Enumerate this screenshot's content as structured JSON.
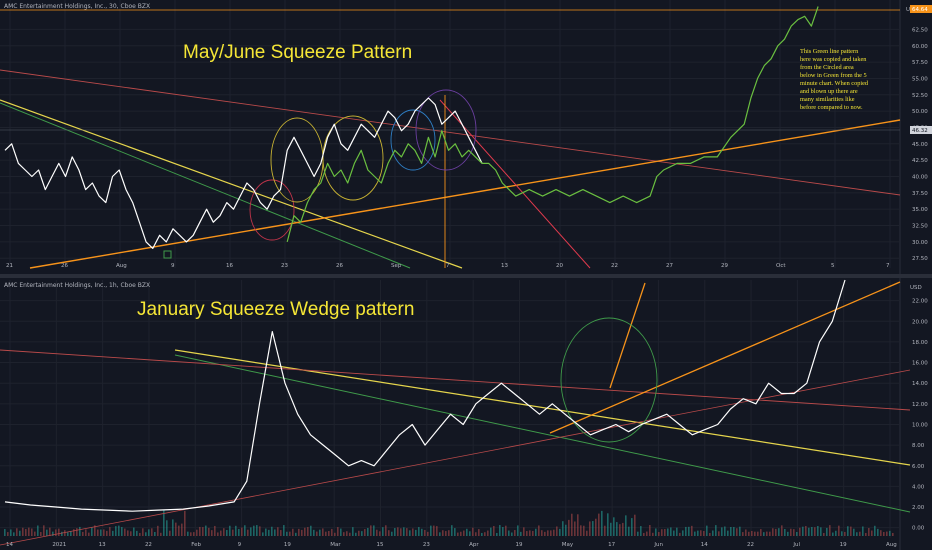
{
  "top_panel": {
    "title": "AMC Entertainment Holdings, Inc., 30, Cboe BZX",
    "heading": "May/June Squeeze Pattern",
    "note_lines": [
      "This Green line pattern",
      "here was copied and taken",
      "from the Circled area",
      "below in Green from the 5",
      "minute chart. When copied",
      "and blown up there are",
      "many similarities like",
      "before compared to now."
    ],
    "currency": "USD",
    "price_tags": [
      {
        "value": "64.64",
        "color": "#f7931a"
      },
      {
        "value": "46.32",
        "color": "#d1d4dc"
      }
    ]
  },
  "bottom_panel": {
    "title": "AMC Entertainment Holdings, Inc., 1h, Cboe BZX",
    "heading": "January Squeeze Wedge pattern",
    "currency": "USD"
  },
  "chart_data": [
    {
      "type": "line",
      "title": "AMC Entertainment Holdings, Inc., 30, Cboe BZX",
      "y_ticks": [
        27.5,
        30,
        32.5,
        35,
        37.5,
        40,
        42.5,
        45,
        47.5,
        50,
        52.5,
        55,
        57.5,
        60,
        62.5
      ],
      "y_tick_labels": [
        "27.50",
        "30.00",
        "32.50",
        "35.00",
        "37.50",
        "40.00",
        "42.50",
        "45.00",
        "47.50",
        "50.00",
        "52.50",
        "55.00",
        "57.50",
        "60.00",
        "62.50"
      ],
      "x_tick_labels": [
        "21",
        "26",
        "Aug",
        "9",
        "16",
        "23",
        "26",
        "Sep",
        "7",
        "13",
        "20",
        "22",
        "27",
        "29",
        "Oct",
        "5",
        "7"
      ],
      "ylim": [
        26,
        67
      ],
      "grid": true,
      "series": [
        {
          "color": "#ffffff",
          "points": [
            [
              0,
              44
            ],
            [
              1,
              45
            ],
            [
              2,
              42
            ],
            [
              3,
              41
            ],
            [
              4,
              40
            ],
            [
              5,
              41
            ],
            [
              6,
              38
            ],
            [
              7,
              40
            ],
            [
              8,
              42
            ],
            [
              9,
              40
            ],
            [
              10,
              43
            ],
            [
              11,
              41
            ],
            [
              12,
              38
            ],
            [
              13,
              39
            ],
            [
              14,
              37
            ],
            [
              15,
              36
            ],
            [
              16,
              40
            ],
            [
              17,
              41
            ],
            [
              18,
              38
            ],
            [
              19,
              36
            ],
            [
              20,
              33
            ],
            [
              21,
              30
            ],
            [
              22,
              29
            ],
            [
              23,
              31
            ],
            [
              24,
              30
            ],
            [
              25,
              32
            ],
            [
              26,
              31
            ],
            [
              27,
              30
            ],
            [
              28,
              31
            ],
            [
              29,
              33
            ],
            [
              30,
              35
            ],
            [
              31,
              33
            ],
            [
              32,
              34
            ],
            [
              33,
              36
            ],
            [
              34,
              35
            ],
            [
              35,
              37
            ],
            [
              36,
              39
            ],
            [
              37,
              38
            ],
            [
              38,
              36
            ],
            [
              39,
              35
            ],
            [
              40,
              37
            ],
            [
              41,
              38
            ],
            [
              42,
              44
            ],
            [
              43,
              46
            ],
            [
              44,
              44
            ],
            [
              45,
              42
            ],
            [
              46,
              40
            ],
            [
              47,
              42
            ],
            [
              48,
              46
            ],
            [
              49,
              48
            ],
            [
              50,
              45
            ],
            [
              51,
              44
            ],
            [
              52,
              46
            ],
            [
              53,
              48
            ],
            [
              54,
              47
            ],
            [
              55,
              46
            ],
            [
              56,
              48
            ],
            [
              57,
              50
            ],
            [
              58,
              49
            ],
            [
              59,
              47
            ],
            [
              60,
              48
            ],
            [
              61,
              50
            ],
            [
              62,
              51
            ],
            [
              63,
              52
            ],
            [
              64,
              51
            ],
            [
              65,
              48
            ],
            [
              66,
              49
            ],
            [
              67,
              50
            ],
            [
              68,
              48
            ],
            [
              69,
              46
            ],
            [
              70,
              44
            ],
            [
              71,
              42
            ]
          ]
        },
        {
          "color": "#6abf40",
          "points": [
            [
              42,
              30
            ],
            [
              43,
              34
            ],
            [
              44,
              33
            ],
            [
              45,
              36
            ],
            [
              46,
              38
            ],
            [
              47,
              39
            ],
            [
              48,
              42
            ],
            [
              49,
              40
            ],
            [
              50,
              41
            ],
            [
              51,
              39
            ],
            [
              52,
              42
            ],
            [
              53,
              44
            ],
            [
              54,
              41
            ],
            [
              55,
              40
            ],
            [
              56,
              39
            ],
            [
              57,
              42
            ],
            [
              58,
              44
            ],
            [
              59,
              43
            ],
            [
              60,
              45
            ],
            [
              61,
              44
            ],
            [
              62,
              42
            ],
            [
              63,
              46
            ],
            [
              64,
              43
            ],
            [
              65,
              47
            ],
            [
              66,
              44
            ],
            [
              67,
              45
            ],
            [
              68,
              43
            ],
            [
              69,
              44
            ],
            [
              70,
              43
            ],
            [
              71,
              42
            ],
            [
              72,
              42
            ],
            [
              73,
              41
            ],
            [
              74,
              39
            ],
            [
              75,
              38
            ],
            [
              76,
              37
            ],
            [
              78,
              38
            ],
            [
              80,
              37
            ],
            [
              82,
              38
            ],
            [
              84,
              37
            ],
            [
              86,
              38
            ],
            [
              88,
              37
            ],
            [
              90,
              36
            ],
            [
              92,
              37
            ],
            [
              94,
              36
            ],
            [
              96,
              37
            ],
            [
              97,
              40
            ],
            [
              98,
              41
            ],
            [
              100,
              42
            ],
            [
              102,
              42
            ],
            [
              104,
              43
            ],
            [
              106,
              43
            ],
            [
              108,
              46
            ],
            [
              110,
              48
            ],
            [
              111,
              52
            ],
            [
              112,
              55
            ],
            [
              113,
              57
            ],
            [
              114,
              58
            ],
            [
              115,
              60
            ],
            [
              116,
              61
            ],
            [
              117,
              63
            ],
            [
              118,
              64
            ],
            [
              119,
              64.5
            ],
            [
              120,
              63
            ],
            [
              121,
              66
            ]
          ]
        }
      ]
    },
    {
      "type": "line",
      "title": "AMC Entertainment Holdings, Inc., 1h, Cboe BZX",
      "y_ticks": [
        0,
        2,
        4,
        6,
        8,
        10,
        12,
        14,
        16,
        18,
        20,
        22
      ],
      "y_tick_labels": [
        "0.00",
        "2.00",
        "4.00",
        "6.00",
        "8.00",
        "10.00",
        "12.00",
        "14.00",
        "16.00",
        "18.00",
        "20.00",
        "22.00"
      ],
      "x_tick_labels": [
        "14",
        "2021",
        "13",
        "22",
        "Feb",
        "9",
        "19",
        "Mar",
        "15",
        "23",
        "Apr",
        "19",
        "May",
        "17",
        "Jun",
        "14",
        "22",
        "Jul",
        "19",
        "Aug"
      ],
      "ylim": [
        -1,
        24
      ],
      "grid": true,
      "series": [
        {
          "color": "#ffffff",
          "points": [
            [
              0,
              2.5
            ],
            [
              2,
              2.2
            ],
            [
              4,
              2
            ],
            [
              6,
              1.8
            ],
            [
              8,
              1.7
            ],
            [
              10,
              1.6
            ],
            [
              12,
              1.7
            ],
            [
              14,
              1.8
            ],
            [
              16,
              2.1
            ],
            [
              18,
              2.5
            ],
            [
              19,
              4.5
            ],
            [
              20,
              12
            ],
            [
              21,
              19
            ],
            [
              22,
              14
            ],
            [
              23,
              11
            ],
            [
              24,
              9
            ],
            [
              25,
              8
            ],
            [
              26,
              7
            ],
            [
              27,
              6
            ],
            [
              28,
              6.5
            ],
            [
              29,
              6
            ],
            [
              30,
              7.5
            ],
            [
              31,
              9
            ],
            [
              32,
              10
            ],
            [
              33,
              8
            ],
            [
              34,
              9.5
            ],
            [
              35,
              11
            ],
            [
              36,
              10
            ],
            [
              37,
              12
            ],
            [
              38,
              13
            ],
            [
              39,
              14
            ],
            [
              40,
              13
            ],
            [
              41,
              12
            ],
            [
              42,
              11
            ],
            [
              43,
              12
            ],
            [
              44,
              11
            ],
            [
              45,
              10
            ],
            [
              46,
              9
            ],
            [
              47,
              9.5
            ],
            [
              48,
              10
            ],
            [
              49,
              9.3
            ],
            [
              50,
              10
            ],
            [
              51,
              10.5
            ],
            [
              52,
              11
            ],
            [
              53,
              10
            ],
            [
              54,
              9
            ],
            [
              55,
              9.5
            ],
            [
              56,
              10
            ],
            [
              57,
              11.5
            ],
            [
              58,
              12.5
            ],
            [
              59,
              12
            ],
            [
              60,
              14
            ],
            [
              61,
              13
            ],
            [
              62,
              13
            ],
            [
              63,
              14
            ],
            [
              64,
              18
            ],
            [
              65,
              20
            ],
            [
              66,
              24
            ]
          ]
        }
      ]
    }
  ]
}
